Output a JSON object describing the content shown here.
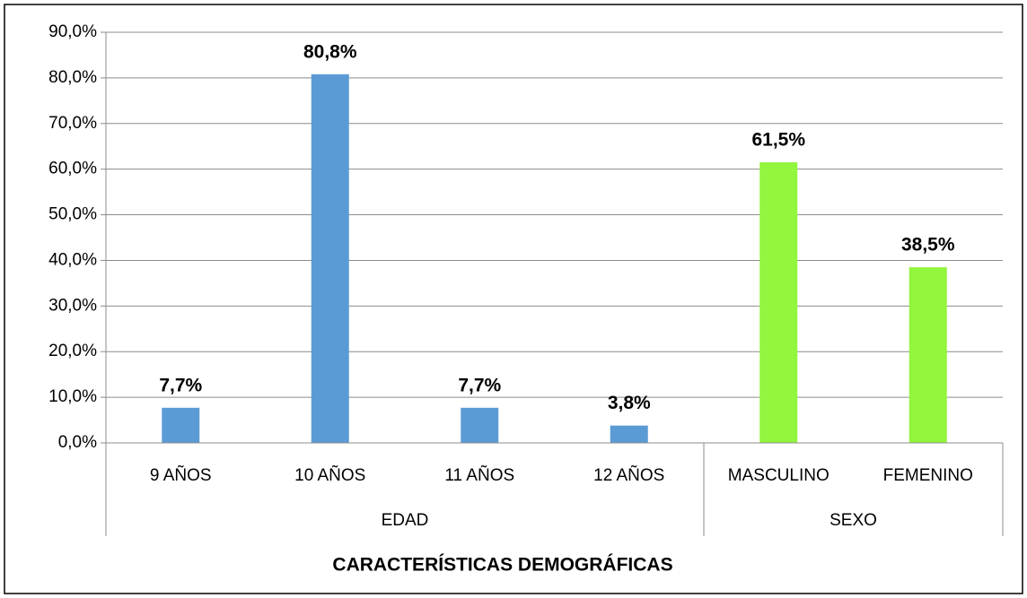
{
  "chart_data": {
    "type": "bar",
    "x_label": "CARACTERÍSTICAS DEMOGRÁFICAS",
    "groups": [
      {
        "name": "EDAD",
        "color": "#5b9bd5",
        "categories": [
          "9 AÑOS",
          "10 AÑOS",
          "11 AÑOS",
          "12 AÑOS"
        ],
        "values": [
          7.7,
          80.8,
          7.7,
          3.8
        ],
        "value_labels": [
          "7,7%",
          "80,8%",
          "7,7%",
          "3,8%"
        ]
      },
      {
        "name": "SEXO",
        "color": "#92f53e",
        "categories": [
          "MASCULINO",
          "FEMENINO"
        ],
        "values": [
          61.5,
          38.5
        ],
        "value_labels": [
          "61,5%",
          "38,5%"
        ]
      }
    ],
    "ylim": [
      0,
      90
    ],
    "yticks": [
      {
        "value": 0,
        "label": "0,0%"
      },
      {
        "value": 10,
        "label": "10,0%"
      },
      {
        "value": 20,
        "label": "20,0%"
      },
      {
        "value": 30,
        "label": "30,0%"
      },
      {
        "value": 40,
        "label": "40,0%"
      },
      {
        "value": 50,
        "label": "50,0%"
      },
      {
        "value": 60,
        "label": "60,0%"
      },
      {
        "value": 70,
        "label": "70,0%"
      },
      {
        "value": 80,
        "label": "80,0%"
      },
      {
        "value": 90,
        "label": "90,0%"
      }
    ],
    "grid": true
  }
}
